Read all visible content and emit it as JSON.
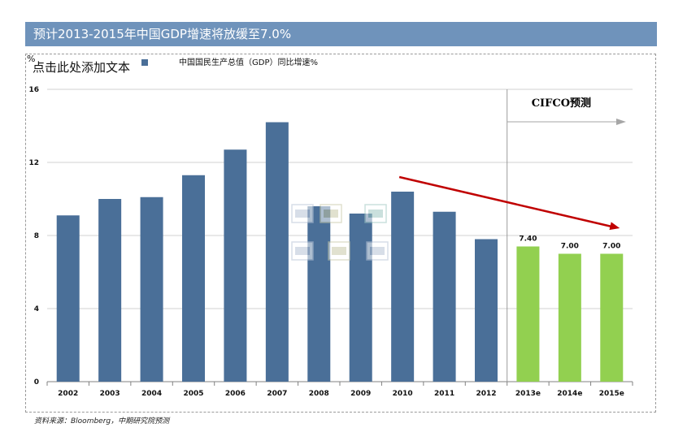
{
  "header": {
    "title": "预计2013-2015年中国GDP增速将放缓至7.0%"
  },
  "placeholder_text": "点击此处添加文本",
  "source_note": "资料来源：Bloomberg，中期研究院预测",
  "chart_data": {
    "type": "bar",
    "title": "",
    "ylabel": "%",
    "xlabel": "",
    "legend": [
      {
        "name": "中国国民生产总值（GDP）同比增速%",
        "color": "#4a6f98"
      }
    ],
    "legend_position": "top",
    "ylim": [
      0,
      16
    ],
    "yticks": [
      0,
      4,
      8,
      12,
      16
    ],
    "grid": true,
    "categories": [
      "2002",
      "2003",
      "2004",
      "2005",
      "2006",
      "2007",
      "2008",
      "2009",
      "2010",
      "2011",
      "2012",
      "2013e",
      "2014e",
      "2015e"
    ],
    "series": [
      {
        "name": "中国国民生产总值（GDP）同比增速%",
        "values": [
          9.1,
          10.0,
          10.1,
          11.3,
          12.7,
          14.2,
          9.6,
          9.2,
          10.4,
          9.3,
          7.8,
          7.4,
          7.0,
          7.0
        ],
        "colors": [
          "#4a6f98",
          "#4a6f98",
          "#4a6f98",
          "#4a6f98",
          "#4a6f98",
          "#4a6f98",
          "#4a6f98",
          "#4a6f98",
          "#4a6f98",
          "#4a6f98",
          "#4a6f98",
          "#92d050",
          "#92d050",
          "#92d050"
        ],
        "data_labels": [
          null,
          null,
          null,
          null,
          null,
          null,
          null,
          null,
          null,
          null,
          null,
          "7.40",
          "7.00",
          "7.00"
        ]
      }
    ],
    "annotations": [
      {
        "text": "CIFCO预测",
        "from_category": "2013e"
      },
      {
        "type": "trend-arrow",
        "from": [
          "2010",
          11.2
        ],
        "to": [
          "2015e",
          8.4
        ],
        "color": "#c00000"
      }
    ]
  }
}
